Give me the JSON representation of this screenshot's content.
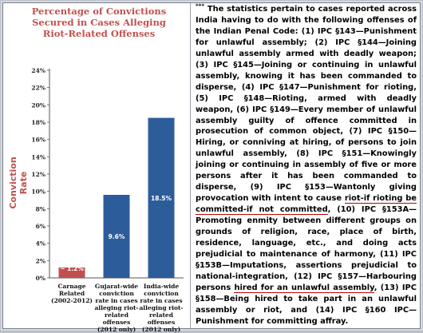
{
  "chart_data": {
    "type": "bar",
    "title": "Percentage of Convictions Secured in Cases Alleging Riot-Related Offenses",
    "ylabel": "Conviction Rate",
    "ylim": [
      0,
      24
    ],
    "yticks": [
      "0%",
      "2%",
      "4%",
      "6%",
      "8%",
      "10%",
      "12%",
      "14%",
      "16%",
      "18%",
      "20%",
      "22%",
      "24%"
    ],
    "categories": [
      "Carnage Related (2002-2012)",
      "Gujarat-wide conviction rate in cases alleging riot-related offenses (2012 only)",
      "India-wide conviction rate in cases alleging riot-related offenses (2012 only)"
    ],
    "values": [
      1.2,
      9.6,
      18.5
    ],
    "data_labels": [
      "~ 1.2%",
      "9.6%",
      "18.5%"
    ],
    "colors": [
      "#c0504d",
      "#2d5c9b",
      "#2d5c9b"
    ],
    "grid": false
  },
  "notes": {
    "marker": "***",
    "segments": [
      "The statistics pertain to cases reported across India having to do with the following offenses of the Indian Penal Code: (1) IPC §143—Punishment for unlawful assembly; (2) IPC §144—Joining unlawful assembly armed with deadly weapon; (3) IPC §145—Joining or continuing in unlawful assembly, knowing it has been commanded to disperse, (4) IPC §147—Punishment for rioting, (5) IPC §148—Rioting, armed with deadly weapon, (6) IPC §149—Every member of unlawful assembly guilty of offence committed in prosecution of common object, (7) IPC §150—Hiring, or conniving at hiring, of persons to join unlawful assembly, (8) IPC §151—Knowingly joining or continuing in assembly of five or more persons after it has been commanded to disperse, (9) IPC §153—Wantonly giving provocation with intent to cause ",
      "riot-if rioting be committed-if not committed",
      ", (10) IPC §153A—Promoting enmity between different groups on grounds of religion, race, place of birth, residence, language, etc., and doing acts prejudicial to maintenance of harmony, (11) IPC §153B—Imputations, assertions prejudicial to national-integration, (12) IPC §157—Harbouring persons ",
      "hired for an unlawful assembly",
      ", (13) IPC §158—Being hired to take part in an unlawful assembly or riot, and (14) IPC §160 IPC—Punishment for committing affray."
    ]
  }
}
